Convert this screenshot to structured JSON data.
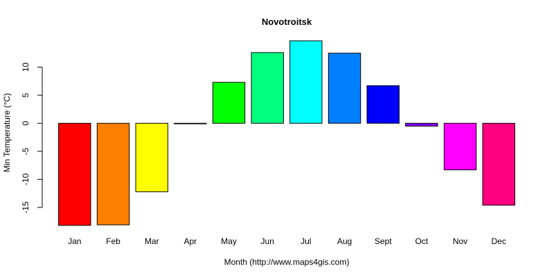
{
  "chart_data": {
    "type": "bar",
    "title": "Novotroitsk",
    "xlabel": "Month (http://www.maps4gis.com)",
    "ylabel": "Min Temperature (°C)",
    "categories": [
      "Jan",
      "Feb",
      "Mar",
      "Apr",
      "May",
      "Jun",
      "Jul",
      "Aug",
      "Sept",
      "Oct",
      "Nov",
      "Dec"
    ],
    "values": [
      -18.2,
      -18.1,
      -12.2,
      -0.1,
      7.3,
      12.6,
      14.7,
      12.5,
      6.7,
      -0.5,
      -8.3,
      -14.6
    ],
    "colors": [
      "#ff0000",
      "#ff8000",
      "#ffff00",
      "#80ff00",
      "#00ff00",
      "#00ff80",
      "#00ffff",
      "#0080ff",
      "#0000ff",
      "#8000ff",
      "#ff00ff",
      "#ff0080"
    ],
    "yticks": [
      -15,
      -10,
      -5,
      0,
      5,
      10
    ],
    "ytick_labels": [
      "-15",
      "-10",
      "-5",
      "0",
      "5",
      "10"
    ],
    "ylim": [
      -18.2,
      14.7
    ],
    "grid": false,
    "legend": "none"
  }
}
